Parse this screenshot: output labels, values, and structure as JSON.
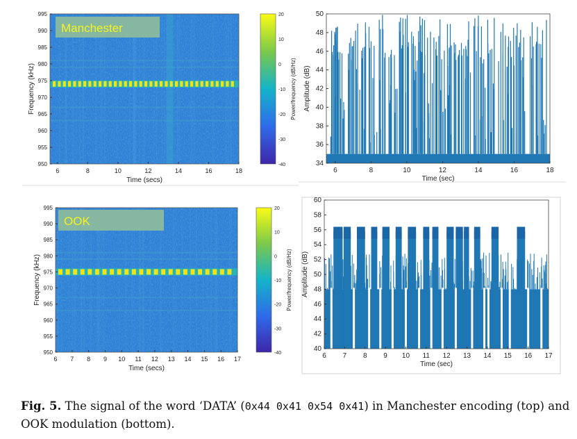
{
  "figure": {
    "caption_label": "Fig. 5.",
    "caption_text_1": "The signal of the word ‘DATA’ (",
    "caption_code": "0x44 0x41 0x54 0x41",
    "caption_text_2": ") in Manchester encoding (top) and OOK modulation (bottom)."
  },
  "colors": {
    "spectro_bg": "#2f7fd4",
    "band": "#f2e21a",
    "line": "#1f77b4"
  },
  "chart_data": [
    {
      "type": "heatmap",
      "id": "spec_top",
      "label": "Manchester",
      "xlabel": "Time (secs)",
      "ylabel": "Frequency (kHz)",
      "xticks": [
        6,
        8,
        10,
        12,
        14,
        16,
        18
      ],
      "xlim": [
        5.5,
        18
      ],
      "yticks": [
        950,
        955,
        960,
        965,
        970,
        975,
        980,
        985,
        990,
        995
      ],
      "ylim": [
        950,
        995
      ],
      "colorbar_label": "Power/frequency (dB/Hz)",
      "colorbar_ticks": [
        20,
        10,
        0,
        -10,
        -20,
        -30,
        -40
      ],
      "carrier_khz": 974
    },
    {
      "type": "line",
      "id": "amp_top",
      "xlabel": "Time (sec)",
      "ylabel": "Amplitude (dB)",
      "xticks": [
        6,
        8,
        10,
        12,
        14,
        16,
        18
      ],
      "xlim": [
        5.5,
        18
      ],
      "yticks": [
        34,
        36,
        38,
        40,
        42,
        44,
        46,
        48,
        50
      ],
      "ylim": [
        34,
        50
      ],
      "high_level": 48,
      "low_level": 35
    },
    {
      "type": "heatmap",
      "id": "spec_bottom",
      "label": "OOK",
      "xlabel": "Time (secs)",
      "ylabel": "Frequency (kHz)",
      "xticks": [
        6,
        7,
        8,
        9,
        10,
        11,
        12,
        13,
        14,
        15,
        16,
        17
      ],
      "xlim": [
        6,
        17
      ],
      "yticks": [
        950,
        955,
        960,
        965,
        970,
        975,
        980,
        985,
        990,
        995
      ],
      "ylim": [
        950,
        995
      ],
      "colorbar_label": "Power/frequency (dB/Hz)",
      "colorbar_ticks": [
        20,
        10,
        0,
        -10,
        -20,
        -30,
        -40
      ],
      "carrier_khz": 975
    },
    {
      "type": "line",
      "id": "amp_bottom",
      "xlabel": "Time (sec)",
      "ylabel": "Amplitude (dB)",
      "xticks": [
        6,
        7,
        8,
        9,
        10,
        11,
        12,
        13,
        14,
        15,
        16,
        17
      ],
      "xlim": [
        6,
        17
      ],
      "yticks": [
        40,
        42,
        44,
        46,
        48,
        50,
        52,
        54,
        56,
        58,
        60
      ],
      "ylim": [
        40,
        60
      ],
      "high_level": 55.8,
      "low_level": 48,
      "on_segments": [
        [
          6.45,
          6.9
        ],
        [
          6.95,
          7.3
        ],
        [
          7.6,
          8.0
        ],
        [
          8.3,
          8.6
        ],
        [
          8.85,
          9.2
        ],
        [
          9.5,
          9.8
        ],
        [
          10.1,
          10.5
        ],
        [
          10.85,
          11.15
        ],
        [
          11.3,
          11.6
        ],
        [
          12.0,
          12.35
        ],
        [
          12.45,
          12.8
        ],
        [
          12.85,
          13.1
        ],
        [
          13.35,
          13.65
        ],
        [
          14.2,
          14.55
        ],
        [
          15.45,
          15.85
        ]
      ]
    }
  ]
}
